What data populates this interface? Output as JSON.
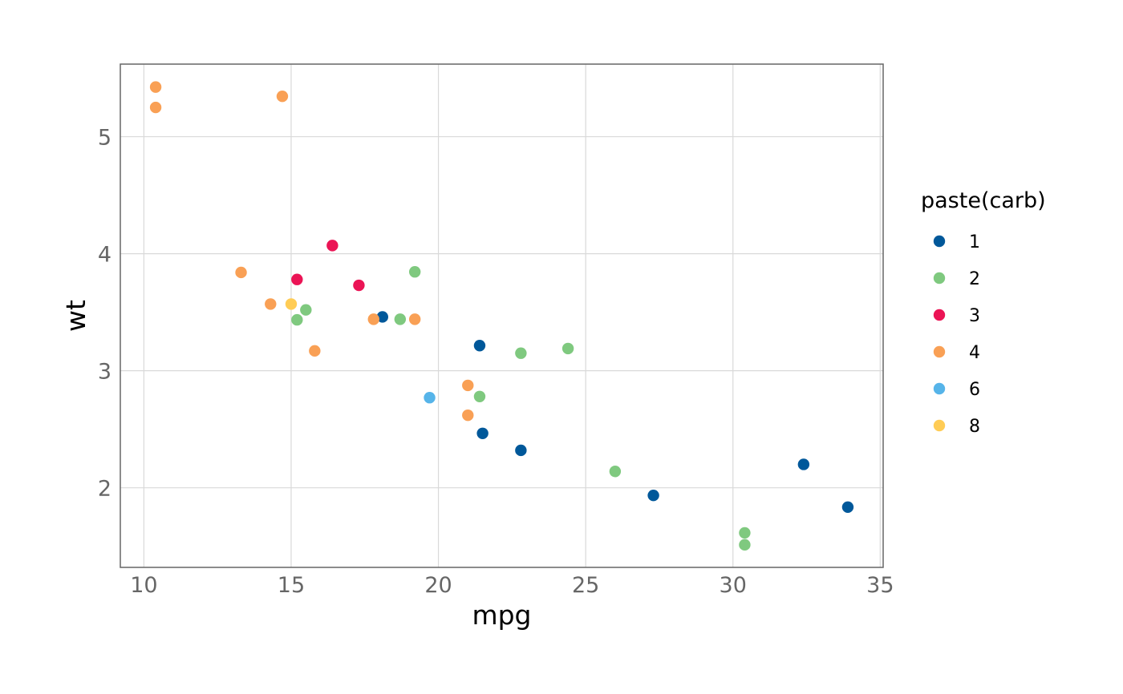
{
  "chart_data": {
    "type": "scatter",
    "title": "",
    "xlabel": "mpg",
    "ylabel": "wt",
    "xlim": [
      9.2,
      35.1
    ],
    "ylim": [
      1.32,
      5.62
    ],
    "xticks": [
      10,
      15,
      20,
      25,
      30,
      35
    ],
    "yticks": [
      2,
      3,
      4,
      5
    ],
    "grid": true,
    "legend": {
      "title": "paste(carb)",
      "position": "right",
      "entries": [
        {
          "name": "1",
          "color": "#00589A"
        },
        {
          "name": "2",
          "color": "#7FC97F"
        },
        {
          "name": "3",
          "color": "#EB1455"
        },
        {
          "name": "4",
          "color": "#F9A055"
        },
        {
          "name": "6",
          "color": "#56B4E9"
        },
        {
          "name": "8",
          "color": "#FFCC55"
        }
      ]
    },
    "series": [
      {
        "name": "1",
        "x": [
          18.1,
          21.4,
          21.5,
          22.8,
          27.3,
          32.4,
          33.9
        ],
        "y": [
          3.46,
          3.215,
          2.465,
          2.32,
          1.935,
          2.2,
          1.835
        ]
      },
      {
        "name": "2",
        "x": [
          15.2,
          15.5,
          18.7,
          19.2,
          21.4,
          22.8,
          24.4,
          26.0,
          30.4,
          30.4
        ],
        "y": [
          3.435,
          3.52,
          3.44,
          3.845,
          2.78,
          3.15,
          3.19,
          2.14,
          1.615,
          1.513
        ]
      },
      {
        "name": "3",
        "x": [
          15.2,
          16.4,
          17.3
        ],
        "y": [
          3.78,
          4.07,
          3.73
        ]
      },
      {
        "name": "4",
        "x": [
          10.4,
          10.4,
          13.3,
          14.3,
          14.7,
          15.8,
          17.8,
          19.2,
          21.0,
          21.0
        ],
        "y": [
          5.25,
          5.424,
          3.84,
          3.57,
          5.345,
          3.17,
          3.44,
          3.44,
          2.62,
          2.875
        ]
      },
      {
        "name": "6",
        "x": [
          19.7
        ],
        "y": [
          2.77
        ]
      },
      {
        "name": "8",
        "x": [
          15.0
        ],
        "y": [
          3.57
        ]
      }
    ]
  }
}
